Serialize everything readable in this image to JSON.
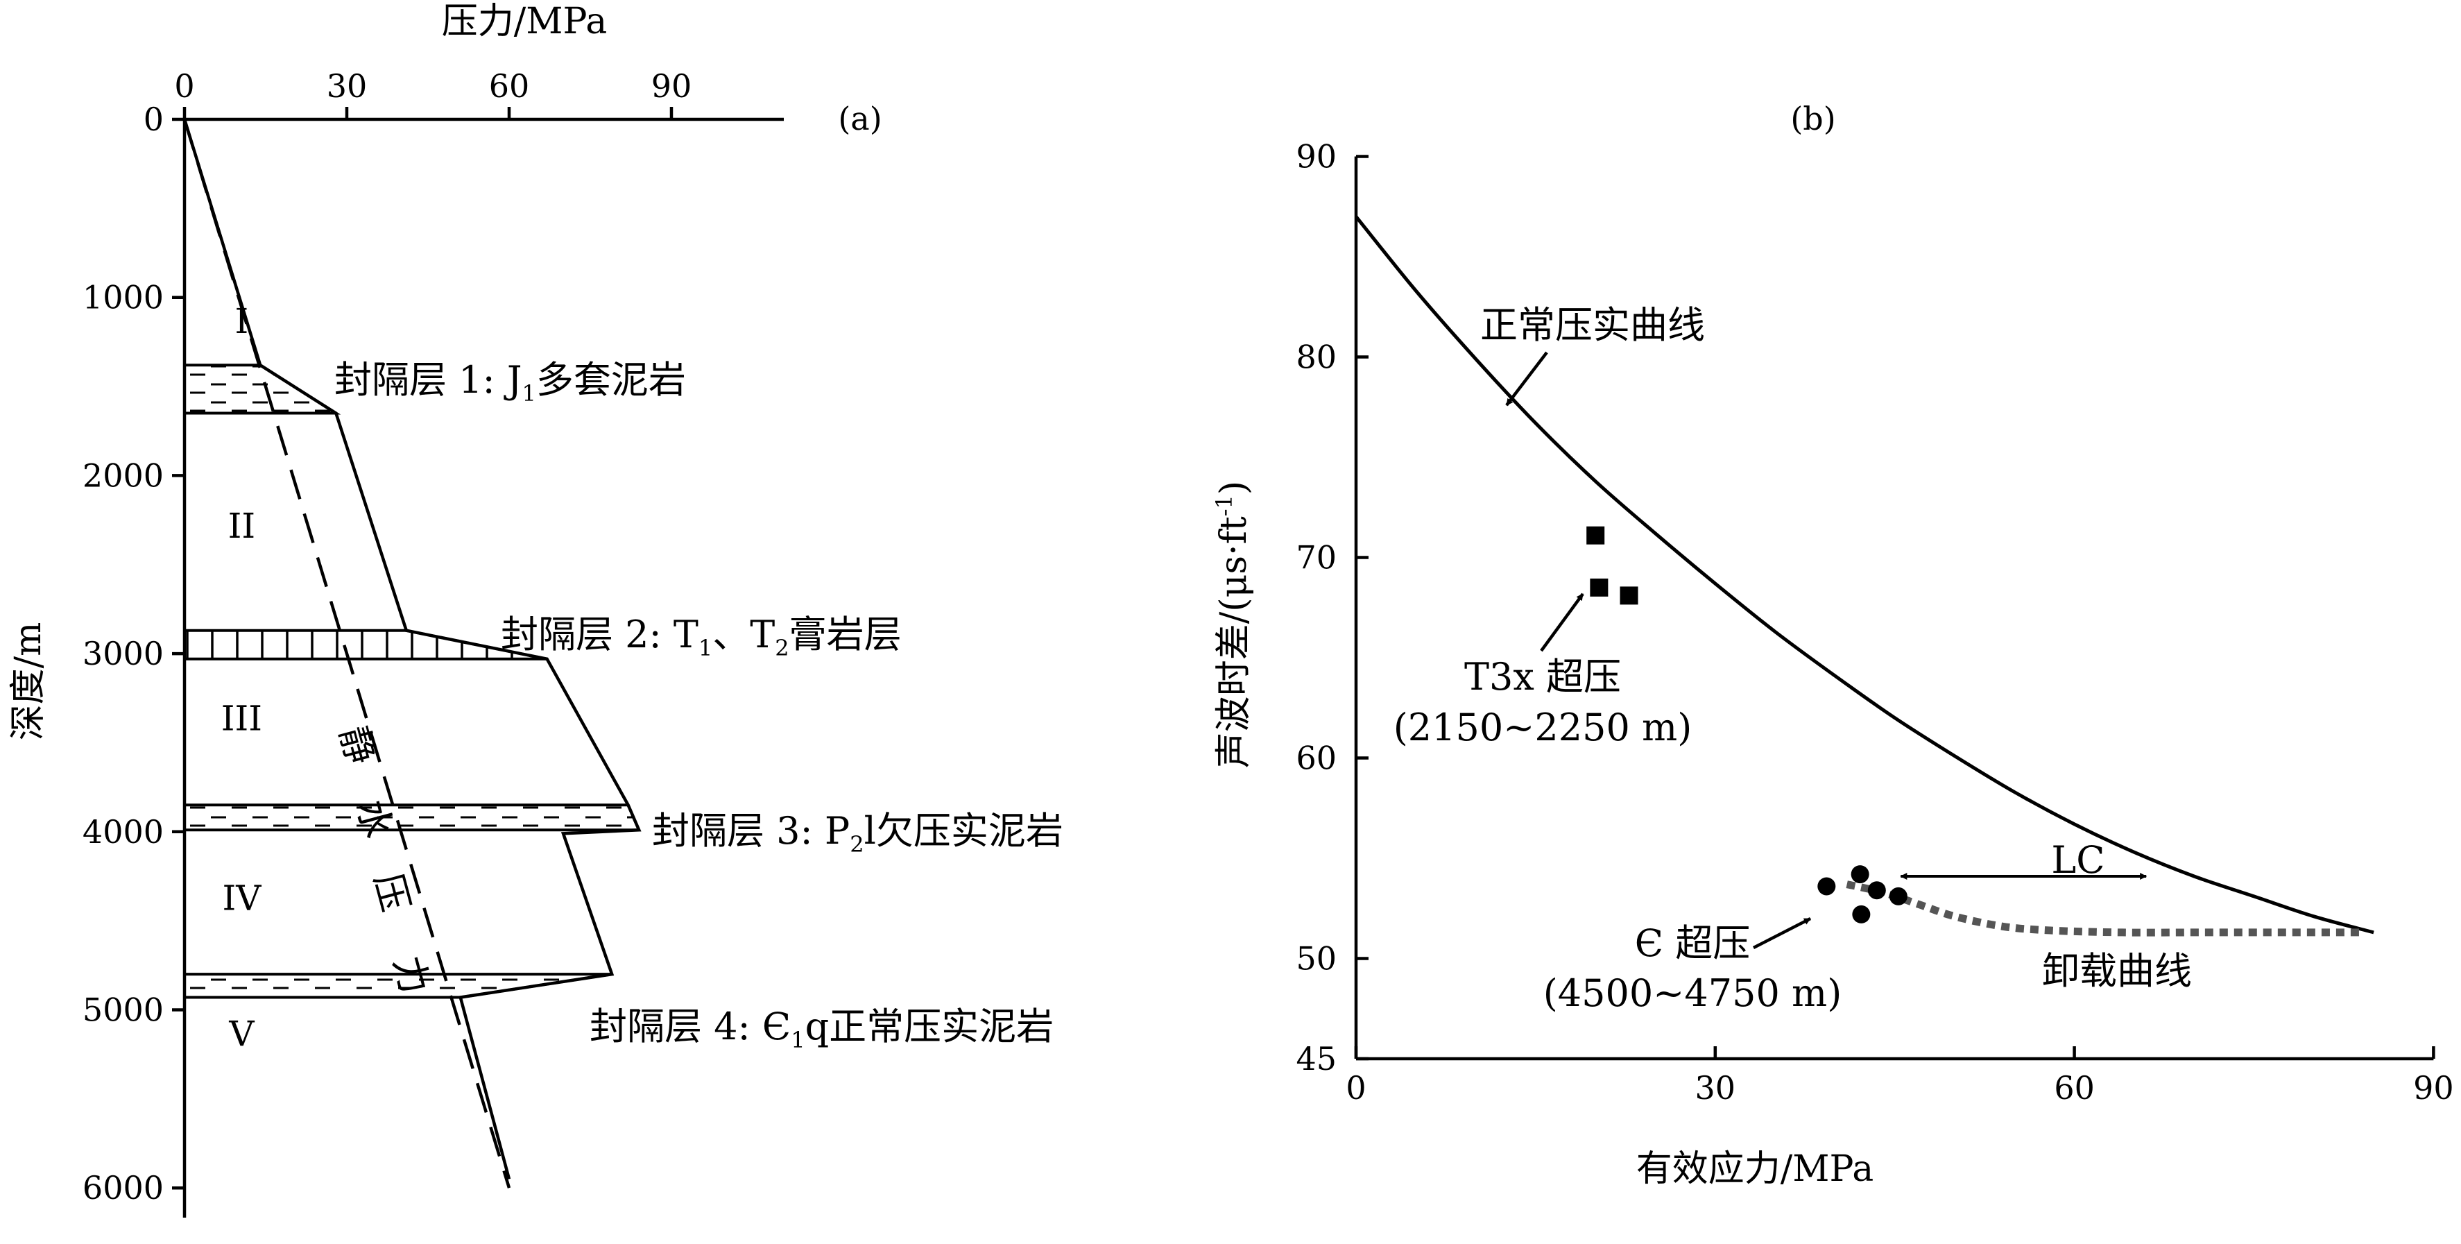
{
  "panel_a": {
    "label": "(a)",
    "x_axis_title": "压力/MPa",
    "y_axis_title": "深度/m",
    "hydrostatic_label_chars": [
      "静",
      "水",
      "压",
      "力"
    ],
    "zones": [
      "I",
      "II",
      "III",
      "IV",
      "V"
    ],
    "seal_labels": [
      {
        "pre": "封隔层 1: J",
        "sub": "1",
        "post": "多套泥岩"
      },
      {
        "pre": "封隔层 2: T",
        "sub": "1",
        "mid": "、T",
        "sub2": "2",
        "post": "膏岩层"
      },
      {
        "pre": "封隔层 3: P",
        "sub": "2",
        "post": "l欠压实泥岩"
      },
      {
        "pre": "封隔层 4: Є",
        "sub": "1",
        "post": "q正常压实泥岩"
      }
    ]
  },
  "panel_b": {
    "label": "(b)",
    "x_axis_title": "有效应力/MPa",
    "y_axis_title": {
      "pre": "声波时差/(μs·ft",
      "sup": "-1",
      "post": ")"
    },
    "curve_normal_label": "正常压实曲线",
    "curve_unload_label": "卸载曲线",
    "lc_label": "LC",
    "group_t3x": {
      "line1": "T3x 超压",
      "line2": "(2150~2250 m)"
    },
    "group_cambrian": {
      "line1": "Є  超压",
      "line2": "(4500~4750 m)"
    }
  },
  "chart_data": [
    {
      "type": "line",
      "panel": "a",
      "x_label": "压力/MPa",
      "y_label": "深度/m",
      "x_ticks": [
        0,
        30,
        60,
        90
      ],
      "y_ticks": [
        0,
        1000,
        2000,
        3000,
        4000,
        5000,
        6000
      ],
      "xlim": [
        0,
        110
      ],
      "ylim": [
        6000,
        0
      ],
      "x_axis_position": "top",
      "series": [
        {
          "role": "formation-pressure",
          "points": [
            [
              0,
              0
            ],
            [
              14,
              1380
            ],
            [
              28,
              1650
            ],
            [
              41,
              2870
            ],
            [
              67,
              3030
            ],
            [
              82,
              3850
            ],
            [
              84,
              3990
            ],
            [
              70,
              4010
            ],
            [
              79,
              4800
            ],
            [
              51,
              4930
            ],
            [
              60,
              5950
            ]
          ]
        },
        {
          "role": "hydrostatic-pressure",
          "style": "dashed",
          "points": [
            [
              0,
              0
            ],
            [
              60,
              6000
            ]
          ]
        }
      ],
      "seals": [
        {
          "pattern": "dashed-shale",
          "depth_top": 1380,
          "depth_bottom": 1650,
          "p_right_top": 14,
          "p_right_bottom": 28
        },
        {
          "pattern": "vertical-hatch",
          "depth_top": 2870,
          "depth_bottom": 3030,
          "p_right_top": 41,
          "p_right_bottom": 67
        },
        {
          "pattern": "dashed-shale",
          "depth_top": 3850,
          "depth_bottom": 3990,
          "p_right_top": 82,
          "p_right_bottom": 84
        },
        {
          "pattern": "dashed-shale",
          "depth_top": 4800,
          "depth_bottom": 4930,
          "p_right_top": 79,
          "p_right_bottom": 51
        }
      ],
      "zones": [
        {
          "name": "I",
          "depth": 1200,
          "pressure": 8
        },
        {
          "name": "II",
          "depth": 2350,
          "pressure": 8
        },
        {
          "name": "III",
          "depth": 3430,
          "pressure": 8
        },
        {
          "name": "IV",
          "depth": 4440,
          "pressure": 8
        },
        {
          "name": "V",
          "depth": 5200,
          "pressure": 8
        }
      ]
    },
    {
      "type": "scatter",
      "panel": "b",
      "x_label": "有效应力/MPa",
      "y_label": "声波时差/(μs·ft-1)",
      "x_ticks": [
        0,
        30,
        60,
        90
      ],
      "y_ticks": [
        45,
        50,
        60,
        70,
        80,
        90
      ],
      "xlim": [
        0,
        90
      ],
      "ylim": [
        45,
        90
      ],
      "series": [
        {
          "name": "正常压实曲线",
          "kind": "line",
          "points": [
            [
              0,
              87
            ],
            [
              5,
              83.3
            ],
            [
              10,
              79.9
            ],
            [
              15,
              76.7
            ],
            [
              20,
              73.8
            ],
            [
              25,
              71.2
            ],
            [
              30,
              68.7
            ],
            [
              35,
              66.3
            ],
            [
              40,
              64.1
            ],
            [
              45,
              62.0
            ],
            [
              50,
              60.1
            ],
            [
              55,
              58.3
            ],
            [
              60,
              56.7
            ],
            [
              65,
              55.3
            ],
            [
              70,
              54.1
            ],
            [
              75,
              53.1
            ],
            [
              80,
              52.1
            ],
            [
              85,
              51.3
            ]
          ]
        },
        {
          "name": "卸载曲线",
          "kind": "dotted-line",
          "points": [
            [
              41,
              53.7
            ],
            [
              44,
              53.3
            ],
            [
              47,
              52.7
            ],
            [
              50,
              52.1
            ],
            [
              54,
              51.6
            ],
            [
              58,
              51.4
            ],
            [
              64,
              51.3
            ],
            [
              70,
              51.3
            ],
            [
              76,
              51.3
            ],
            [
              84,
              51.3
            ]
          ]
        },
        {
          "name": "T3x 超压",
          "marker": "square",
          "points": [
            [
              20,
              71.1
            ],
            [
              20.3,
              68.5
            ],
            [
              22.8,
              68.1
            ]
          ]
        },
        {
          "name": "Є 超压",
          "marker": "circle",
          "points": [
            [
              39.3,
              53.6
            ],
            [
              42.1,
              54.2
            ],
            [
              42.2,
              52.2
            ],
            [
              43.5,
              53.4
            ],
            [
              45.3,
              53.1
            ]
          ]
        }
      ],
      "annotations": [
        {
          "text": "LC",
          "type": "double-arrow",
          "x_from": 45.5,
          "x_to": 66,
          "y": 54.1
        }
      ]
    }
  ]
}
